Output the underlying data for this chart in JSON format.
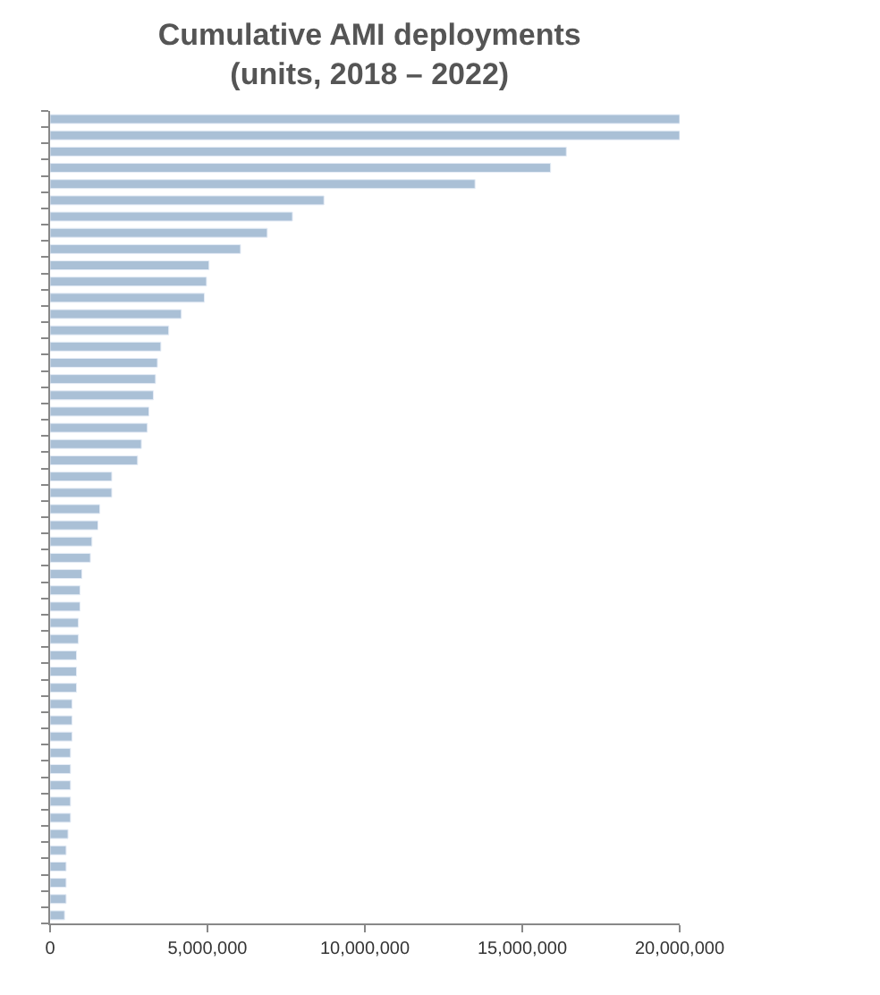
{
  "chart_data": {
    "type": "bar",
    "orientation": "horizontal",
    "title": "Cumulative AMI deployments\n(units, 2018 – 2022)",
    "categories": [
      null,
      null,
      null,
      null,
      null,
      null,
      null,
      null,
      null,
      null,
      null,
      null,
      null,
      null,
      null,
      null,
      null,
      null,
      null,
      null,
      null,
      null,
      null,
      null,
      null,
      null,
      null,
      null,
      null,
      null,
      null,
      null,
      null,
      null,
      null,
      null,
      null,
      null,
      null,
      null,
      null,
      null,
      null,
      null,
      null,
      null,
      null,
      null,
      null,
      null
    ],
    "values": [
      20000000,
      20000000,
      16400000,
      15900000,
      13500000,
      8700000,
      7700000,
      6900000,
      6050000,
      5050000,
      4970000,
      4900000,
      4170000,
      3770000,
      3520000,
      3410000,
      3350000,
      3280000,
      3140000,
      3090000,
      2900000,
      2780000,
      1960000,
      1960000,
      1580000,
      1520000,
      1330000,
      1280000,
      1010000,
      950000,
      950000,
      900000,
      900000,
      840000,
      840000,
      840000,
      700000,
      700000,
      700000,
      650000,
      650000,
      650000,
      650000,
      650000,
      570000,
      510000,
      510000,
      510000,
      510000,
      460000
    ],
    "color": "#aac0d6",
    "xlim": [
      0,
      20000000
    ],
    "xticks": [
      {
        "value": 0,
        "label": "0"
      },
      {
        "value": 5000000,
        "label": "5,000,000"
      },
      {
        "value": 10000000,
        "label": "10,000,000"
      },
      {
        "value": 15000000,
        "label": "15,000,000"
      },
      {
        "value": 20000000,
        "label": "20,000,000"
      }
    ],
    "tick_labels": "x"
  }
}
